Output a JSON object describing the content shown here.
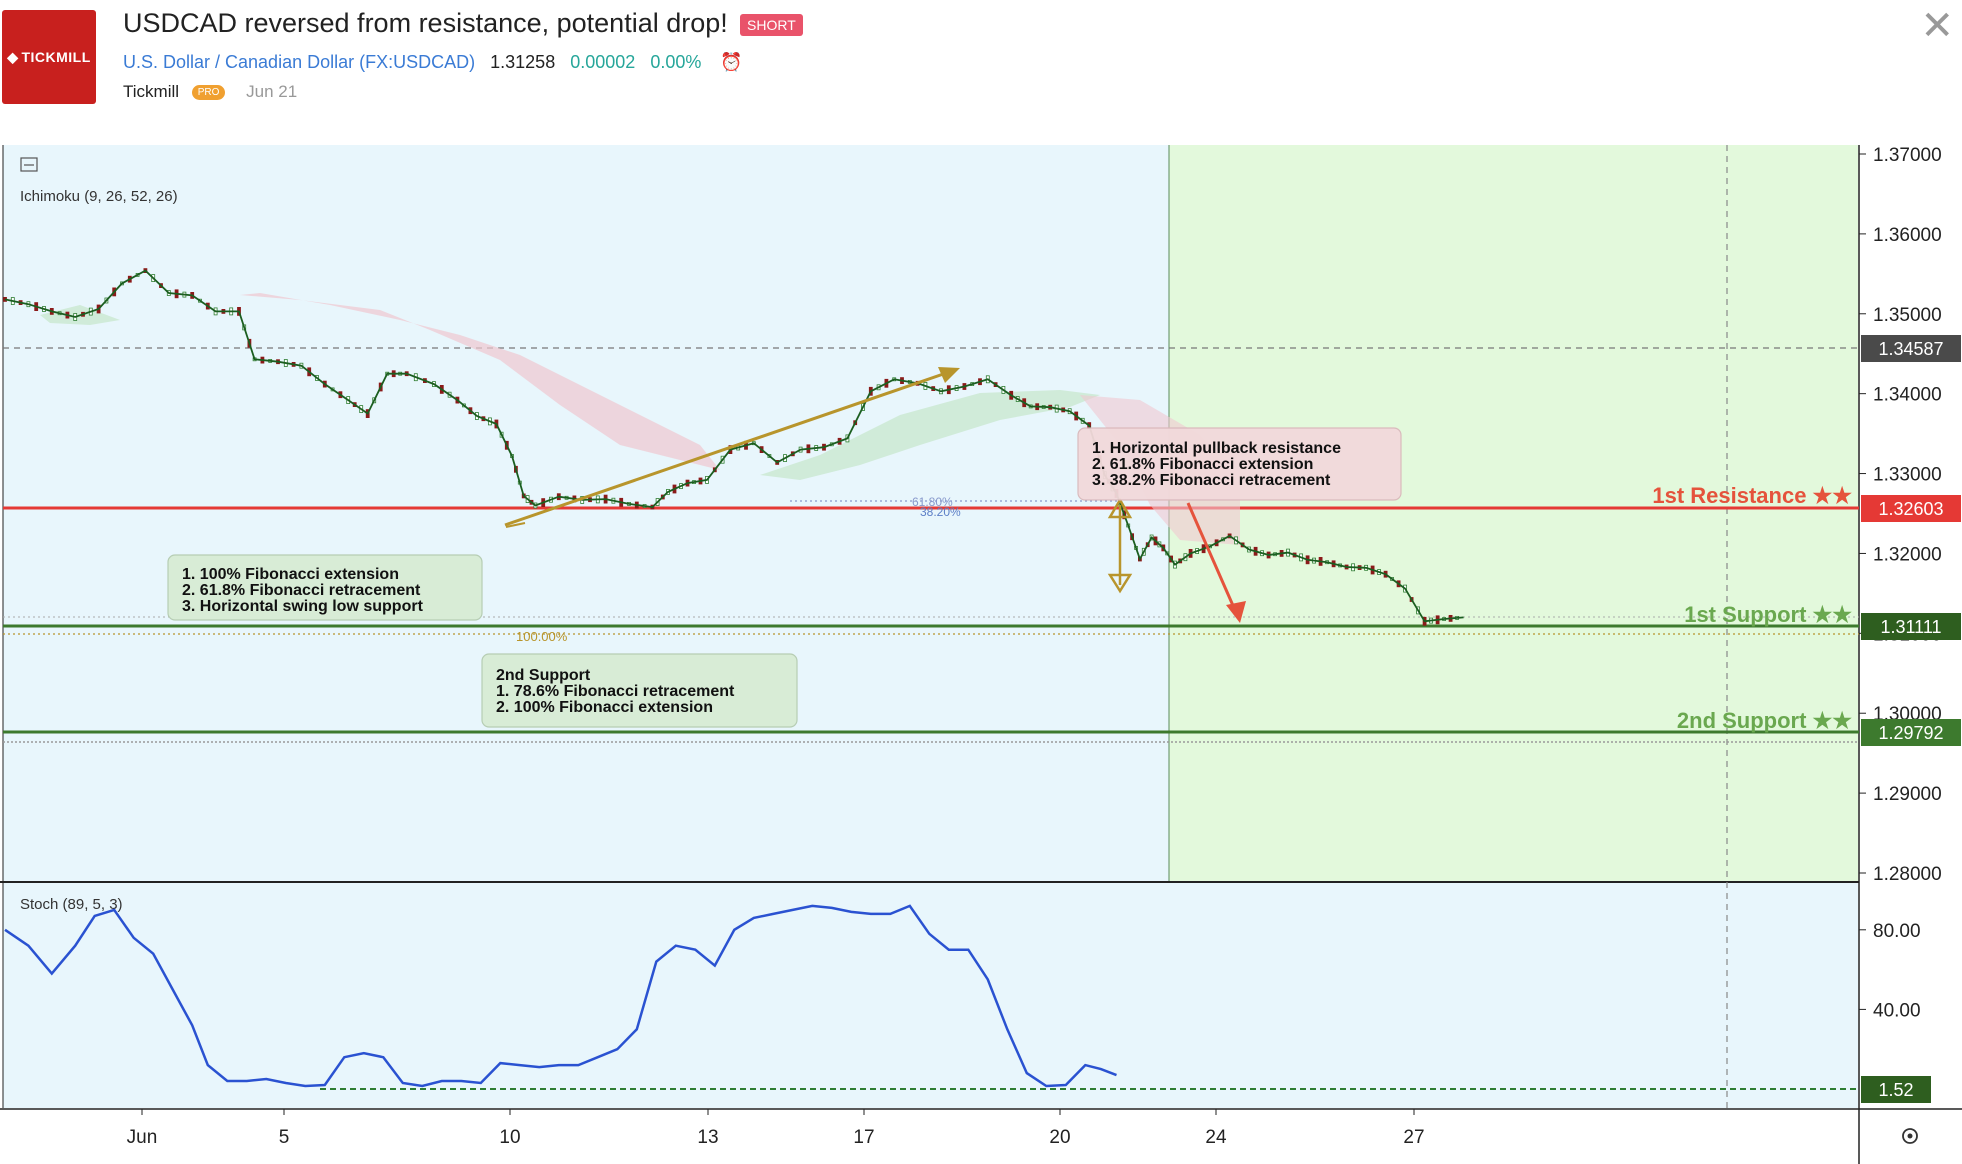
{
  "header": {
    "logo_text": "TICKMILL",
    "title": "USDCAD reversed from resistance, potential drop!",
    "badge": "SHORT",
    "symbol_name": "U.S. Dollar / Canadian Dollar",
    "symbol_code": "(FX:USDCAD)",
    "price": "1.31258",
    "change": "0.00002",
    "change_pct": "0.00%",
    "author": "Tickmill",
    "pro_badge": "PRO",
    "date": "Jun 21"
  },
  "colors": {
    "bg_left": "#e8f6fc",
    "bg_right": "#e3f9dc",
    "resistance": "#e53935",
    "support": "#3d7a2e",
    "label_green": "#6aa84f",
    "stoch_line": "#2a52d1",
    "candle_green": "#2e7d32",
    "candle_red": "#8b1a1a",
    "arrow_gold": "#b8952c",
    "arrow_red": "#e5533c"
  },
  "chart_data": {
    "type": "candlestick",
    "symbol": "FX:USDCAD",
    "ylim": [
      1.28,
      1.37
    ],
    "y_ticks": [
      "1.37000",
      "1.36000",
      "1.35000",
      "1.34000",
      "1.33000",
      "1.32000",
      "1.31000",
      "1.30000",
      "1.29000",
      "1.28000"
    ],
    "x_ticks": [
      "Jun",
      "5",
      "10",
      "13",
      "17",
      "20",
      "24",
      "27"
    ],
    "indicators": {
      "ichimoku_label": "Ichimoku (9, 26, 52, 26)",
      "stoch_label": "Stoch (89, 5, 3)"
    },
    "price_series": [
      [
        0,
        1.3518
      ],
      [
        6,
        1.3512
      ],
      [
        12,
        1.3503
      ],
      [
        18,
        1.3496
      ],
      [
        24,
        1.3506
      ],
      [
        30,
        1.3538
      ],
      [
        36,
        1.3554
      ],
      [
        42,
        1.3526
      ],
      [
        48,
        1.3523
      ],
      [
        54,
        1.3503
      ],
      [
        60,
        1.3503
      ],
      [
        64,
        1.3443
      ],
      [
        70,
        1.344
      ],
      [
        76,
        1.3435
      ],
      [
        82,
        1.3412
      ],
      [
        88,
        1.3392
      ],
      [
        93,
        1.3375
      ],
      [
        98,
        1.3425
      ],
      [
        103,
        1.3425
      ],
      [
        110,
        1.3412
      ],
      [
        116,
        1.3392
      ],
      [
        121,
        1.3372
      ],
      [
        126,
        1.3362
      ],
      [
        130,
        1.3322
      ],
      [
        133,
        1.3272
      ],
      [
        136,
        1.326
      ],
      [
        142,
        1.3271
      ],
      [
        148,
        1.3267
      ],
      [
        154,
        1.3268
      ],
      [
        160,
        1.3262
      ],
      [
        166,
        1.3258
      ],
      [
        170,
        1.3277
      ],
      [
        175,
        1.3288
      ],
      [
        180,
        1.3292
      ],
      [
        186,
        1.333
      ],
      [
        192,
        1.3338
      ],
      [
        198,
        1.3314
      ],
      [
        204,
        1.333
      ],
      [
        210,
        1.3333
      ],
      [
        216,
        1.3344
      ],
      [
        222,
        1.3403
      ],
      [
        228,
        1.3418
      ],
      [
        234,
        1.3413
      ],
      [
        240,
        1.3403
      ],
      [
        246,
        1.3409
      ],
      [
        252,
        1.3418
      ],
      [
        258,
        1.3398
      ],
      [
        263,
        1.3384
      ],
      [
        268,
        1.3383
      ],
      [
        273,
        1.3378
      ],
      [
        278,
        1.336
      ],
      [
        282,
        1.3298
      ],
      [
        285,
        1.3275
      ],
      [
        288,
        1.3235
      ],
      [
        291,
        1.3193
      ],
      [
        294,
        1.322
      ],
      [
        297,
        1.3207
      ],
      [
        300,
        1.3186
      ],
      [
        304,
        1.32
      ],
      [
        309,
        1.3209
      ],
      [
        314,
        1.3222
      ],
      [
        319,
        1.3205
      ],
      [
        324,
        1.3198
      ],
      [
        329,
        1.3201
      ],
      [
        334,
        1.3192
      ],
      [
        339,
        1.3189
      ],
      [
        344,
        1.3183
      ],
      [
        349,
        1.3182
      ],
      [
        354,
        1.3174
      ],
      [
        359,
        1.3156
      ],
      [
        364,
        1.3115
      ],
      [
        369,
        1.3118
      ],
      [
        374,
        1.312
      ]
    ],
    "stoch_ylim": [
      0,
      100
    ],
    "stoch_ticks": [
      "80.00",
      "40.00"
    ],
    "stoch_series": [
      [
        0,
        80
      ],
      [
        6,
        72
      ],
      [
        12,
        58
      ],
      [
        18,
        72
      ],
      [
        23,
        87
      ],
      [
        28,
        90
      ],
      [
        33,
        76
      ],
      [
        38,
        68
      ],
      [
        43,
        50
      ],
      [
        48,
        32
      ],
      [
        52,
        12
      ],
      [
        57,
        4
      ],
      [
        62,
        4
      ],
      [
        67,
        5
      ],
      [
        72,
        3
      ],
      [
        77,
        1.5
      ],
      [
        82,
        2
      ],
      [
        87,
        16
      ],
      [
        92,
        18
      ],
      [
        97,
        16
      ],
      [
        102,
        3
      ],
      [
        107,
        1.5
      ],
      [
        112,
        4
      ],
      [
        117,
        4
      ],
      [
        122,
        3
      ],
      [
        127,
        13
      ],
      [
        132,
        12
      ],
      [
        137,
        11
      ],
      [
        142,
        12
      ],
      [
        147,
        12
      ],
      [
        152,
        16
      ],
      [
        157,
        20
      ],
      [
        162,
        30
      ],
      [
        167,
        64
      ],
      [
        172,
        72
      ],
      [
        177,
        70
      ],
      [
        182,
        62
      ],
      [
        187,
        80
      ],
      [
        192,
        86
      ],
      [
        197,
        88
      ],
      [
        202,
        90
      ],
      [
        207,
        92
      ],
      [
        212,
        91
      ],
      [
        217,
        89
      ],
      [
        222,
        88
      ],
      [
        227,
        88
      ],
      [
        232,
        92
      ],
      [
        237,
        78
      ],
      [
        242,
        70
      ],
      [
        247,
        70
      ],
      [
        252,
        55
      ],
      [
        257,
        30
      ],
      [
        262,
        8
      ],
      [
        267,
        1.5
      ],
      [
        272,
        2
      ],
      [
        277,
        12
      ],
      [
        281,
        10
      ],
      [
        285,
        7
      ]
    ],
    "stoch_value": "1.52",
    "price_labels": {
      "last": "1.34587",
      "resistance": "1.32603",
      "support1": "1.31111",
      "support2": "1.29792"
    },
    "levels": {
      "resistance_label": "1st Resistance ★★",
      "support1_label": "1st Support ★★",
      "support2_label": "2nd Support ★★"
    },
    "fib_labels": {
      "f618": "61.80%",
      "f382": "38.20%",
      "f100": "100.00%"
    },
    "annotations": {
      "resistance_box": [
        "1. Horizontal pullback resistance",
        "2. 61.8% Fibonacci extension",
        "3. 38.2% Fibonacci retracement"
      ],
      "support1_box": [
        "1. 100% Fibonacci extension",
        "2. 61.8% Fibonacci retracement",
        "3. Horizontal swing low support"
      ],
      "support2_box": [
        "2nd Support",
        "1. 78.6% Fibonacci retracement",
        "2. 100% Fibonacci extension"
      ]
    }
  }
}
